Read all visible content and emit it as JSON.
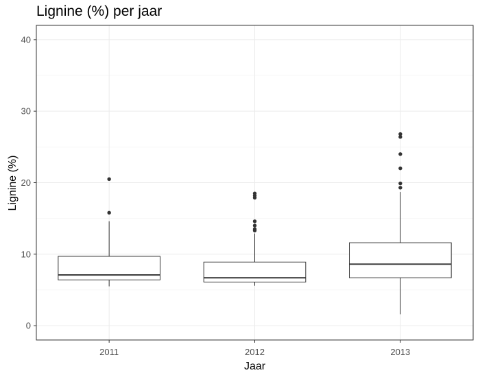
{
  "chart_data": {
    "type": "box",
    "title": "Lignine (%) per jaar",
    "xlabel": "Jaar",
    "ylabel": "Lignine (%)",
    "ylim": [
      -2,
      42
    ],
    "yticks": [
      0,
      10,
      20,
      30,
      40
    ],
    "grid": true,
    "categories": [
      "2011",
      "2012",
      "2013"
    ],
    "boxes": [
      {
        "category": "2011",
        "whisker_low": 5.5,
        "q1": 6.4,
        "median": 7.1,
        "q3": 9.7,
        "whisker_high": 14.6,
        "outliers": [
          15.8,
          20.5
        ]
      },
      {
        "category": "2012",
        "whisker_low": 5.6,
        "q1": 6.1,
        "median": 6.7,
        "q3": 8.9,
        "whisker_high": 12.9,
        "outliers": [
          13.3,
          13.5,
          14.0,
          14.6,
          17.9,
          18.2,
          18.5
        ]
      },
      {
        "category": "2013",
        "whisker_low": 1.6,
        "q1": 6.7,
        "median": 8.6,
        "q3": 11.6,
        "whisker_high": 18.7,
        "outliers": [
          19.3,
          19.9,
          22.0,
          24.0,
          26.4,
          26.8
        ]
      }
    ]
  }
}
